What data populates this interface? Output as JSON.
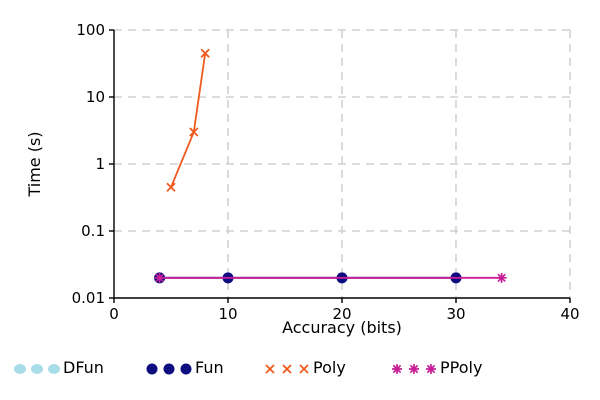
{
  "colors": {
    "background": "#ffffff",
    "axis": "#000000",
    "grid": "#c8c8c8",
    "DFun": "#a8dce8",
    "Fun": "#0d0d80",
    "Poly": "#f05a1e",
    "PPoly": "#c81e96"
  },
  "chart_data": {
    "type": "line",
    "title": "",
    "xlabel": "Accuracy (bits)",
    "ylabel": "Time (s)",
    "xlim": [
      0,
      40
    ],
    "ylim": [
      0.01,
      100
    ],
    "yscale": "log",
    "x_ticks": [
      "0",
      "10",
      "20",
      "30",
      "40"
    ],
    "y_ticks": [
      "0.01",
      "0.1",
      "1",
      "10",
      "100"
    ],
    "grid": true,
    "legend_position": "bottom",
    "series": [
      {
        "name": "DFun",
        "marker": "circle-light",
        "x": [],
        "y": []
      },
      {
        "name": "Fun",
        "marker": "filled-circle",
        "x": [
          4,
          10,
          20,
          30
        ],
        "y": [
          0.02,
          0.02,
          0.02,
          0.02
        ]
      },
      {
        "name": "Poly",
        "marker": "x-cross",
        "x": [
          5,
          7,
          8
        ],
        "y": [
          0.45,
          3,
          45
        ]
      },
      {
        "name": "PPoly",
        "marker": "asterisk",
        "x": [
          4,
          34
        ],
        "y": [
          0.02,
          0.02
        ]
      }
    ]
  }
}
